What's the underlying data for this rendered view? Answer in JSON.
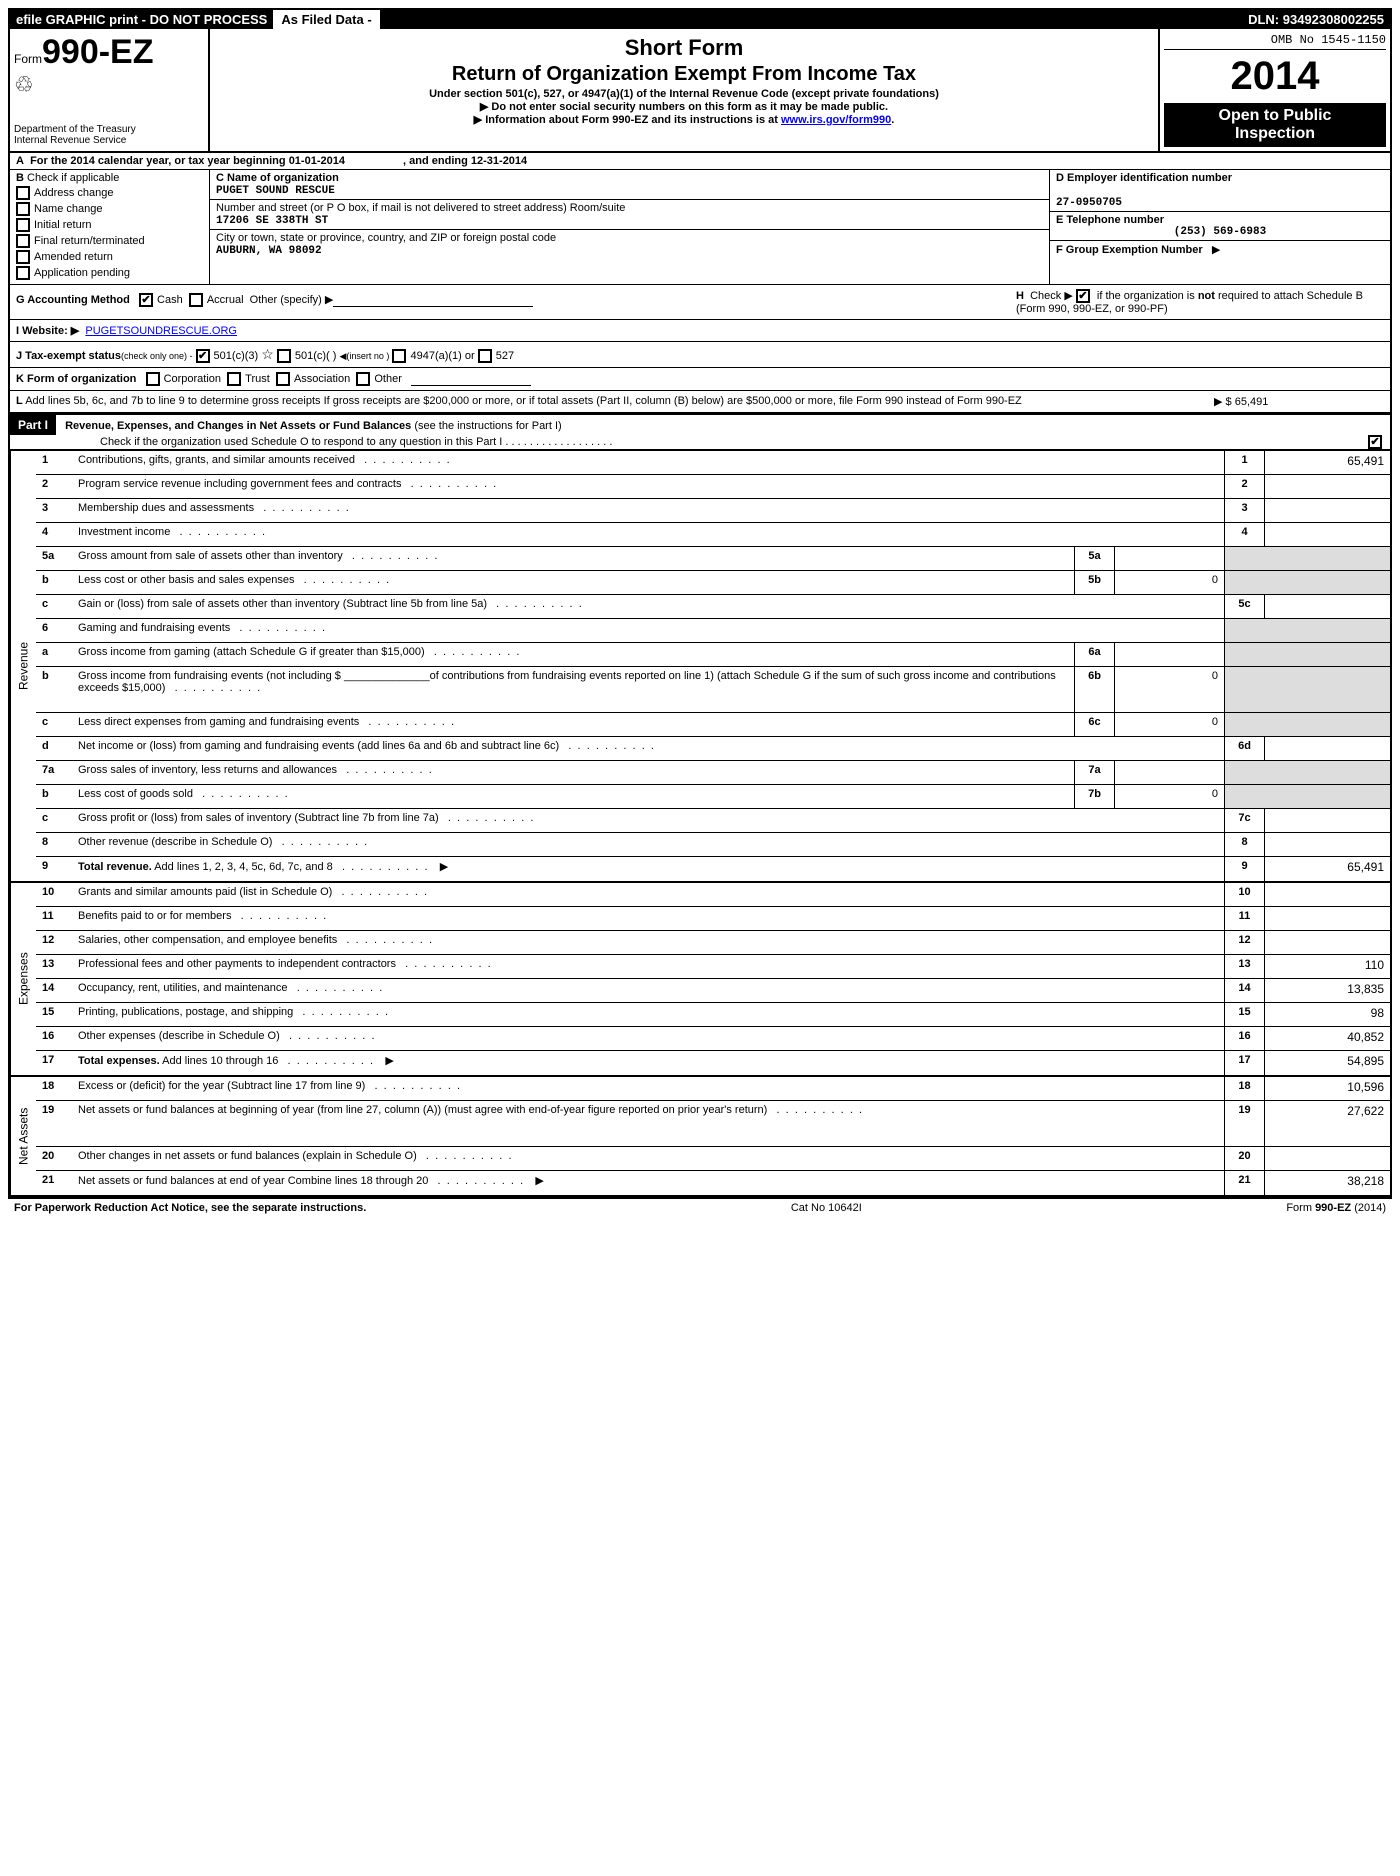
{
  "topbar": {
    "efile": "efile GRAPHIC print - DO NOT PROCESS",
    "asfiled": "As Filed Data -",
    "dln_label": "DLN:",
    "dln": "93492308002255"
  },
  "header": {
    "form_prefix": "Form",
    "form_no": "990-EZ",
    "short_form": "Short Form",
    "title": "Return of Organization Exempt From Income Tax",
    "subtitle": "Under section 501(c), 527, or 4947(a)(1) of the Internal Revenue Code (except private foundations)",
    "note1": "▶ Do not enter social security numbers on this form as it may be made public.",
    "note2_pre": "▶ Information about Form 990-EZ and its instructions is at ",
    "note2_link": "www.irs.gov/form990",
    "note2_post": ".",
    "dept1": "Department of the Treasury",
    "dept2": "Internal Revenue Service",
    "omb": "OMB No 1545-1150",
    "year": "2014",
    "open1": "Open to Public",
    "open2": "Inspection"
  },
  "row_a": {
    "prefix": "A",
    "text1": "For the 2014 calendar year, or tax year beginning ",
    "begin": "01-01-2014",
    "text2": ", and ending ",
    "end": "12-31-2014"
  },
  "col_b": {
    "label": "B",
    "heading": "Check if applicable",
    "items": [
      "Address change",
      "Name change",
      "Initial return",
      "Final return/terminated",
      "Amended return",
      "Application pending"
    ]
  },
  "col_c": {
    "name_label": "C Name of organization",
    "name": "PUGET SOUND RESCUE",
    "street_label": "Number and street (or P O box, if mail is not delivered to street address) Room/suite",
    "street": "17206 SE 338TH ST",
    "city_label": "City or town, state or province, country, and ZIP or foreign postal code",
    "city": "AUBURN, WA  98092"
  },
  "col_d": {
    "label": "D Employer identification number",
    "value": "27-0950705",
    "e_label": "E Telephone number",
    "e_value": "(253) 569-6983",
    "f_label": "F Group Exemption Number",
    "f_arrow": "▶"
  },
  "row_g": {
    "label": "G Accounting Method",
    "cash": "Cash",
    "accrual": "Accrual",
    "other": "Other (specify) ▶"
  },
  "row_h": {
    "prefix": "H",
    "text1": "Check ▶",
    "text2": "if the organization is",
    "not": "not",
    "text3": "required to attach Schedule B (Form 990, 990-EZ, or 990-PF)"
  },
  "row_i": {
    "label": "I Website: ▶",
    "url": "PUGETSOUNDRESCUE.ORG"
  },
  "row_j": {
    "label": "J Tax-exempt status",
    "note": "(check only one) -",
    "opt1": "501(c)(3)",
    "opt2": "501(c)(  )",
    "opt2_note": "◀(insert no )",
    "opt3": "4947(a)(1) or",
    "opt4": "527"
  },
  "row_k": {
    "label": "K Form of organization",
    "opts": [
      "Corporation",
      "Trust",
      "Association",
      "Other"
    ]
  },
  "row_l": {
    "label": "L",
    "text": "Add lines 5b, 6c, and 7b to line 9 to determine gross receipts  If gross receipts are $200,000 or more, or if total assets (Part II, column (B) below) are $500,000 or more, file Form 990 instead of Form 990-EZ",
    "arrow": "▶",
    "value": "$ 65,491"
  },
  "part1": {
    "label": "Part I",
    "title": "Revenue, Expenses, and Changes in Net Assets or Fund Balances",
    "note": "(see the instructions for Part I)",
    "check_line": "Check if the organization used Schedule O to respond to any question in this Part I   .   .   .   .   .   .   .   .   .   .   .   .   .   .   .   .   .   ."
  },
  "sections": {
    "revenue": "Revenue",
    "expenses": "Expenses",
    "netassets": "Net Assets"
  },
  "lines": [
    {
      "n": "1",
      "desc": "Contributions, gifts, grants, and similar amounts received",
      "rbox": "1",
      "rval": "65,491",
      "shade_mid": true
    },
    {
      "n": "2",
      "desc": "Program service revenue including government fees and contracts",
      "rbox": "2",
      "rval": "",
      "shade_mid": true
    },
    {
      "n": "3",
      "desc": "Membership dues and assessments",
      "rbox": "3",
      "rval": "",
      "shade_mid": true
    },
    {
      "n": "4",
      "desc": "Investment income",
      "rbox": "4",
      "rval": "",
      "shade_mid": true
    },
    {
      "n": "5a",
      "desc": "Gross amount from sale of assets other than inventory",
      "mbox": "5a",
      "mval": "",
      "shade_right": true
    },
    {
      "n": "b",
      "desc": "Less  cost or other basis and sales expenses",
      "mbox": "5b",
      "mval": "0",
      "shade_right": true
    },
    {
      "n": "c",
      "desc": "Gain or (loss) from sale of assets other than inventory (Subtract line 5b from line 5a)",
      "rbox": "5c",
      "rval": "",
      "shade_mid": true
    },
    {
      "n": "6",
      "desc": "Gaming and fundraising events",
      "shade_mid": true,
      "shade_right": true,
      "noborder": false
    },
    {
      "n": "a",
      "desc": "Gross income from gaming (attach Schedule G if greater than $15,000)",
      "mbox": "6a",
      "mval": "",
      "shade_right": true
    },
    {
      "n": "b",
      "desc_html": "Gross income from fundraising events (not including $ ______________of contributions from fundraising events reported on line 1) (attach Schedule G if the sum of such gross income and contributions exceeds $15,000)",
      "mbox": "6b",
      "mval": "0",
      "shade_right": true,
      "tall": true
    },
    {
      "n": "c",
      "desc": "Less  direct expenses from gaming and fundraising events",
      "mbox": "6c",
      "mval": "0",
      "shade_right": true
    },
    {
      "n": "d",
      "desc": "Net income or (loss) from gaming and fundraising events (add lines 6a and 6b and subtract line 6c)",
      "rbox": "6d",
      "rval": "",
      "shade_mid": true
    },
    {
      "n": "7a",
      "desc": "Gross sales of inventory, less returns and allowances",
      "mbox": "7a",
      "mval": "",
      "shade_right": true
    },
    {
      "n": "b",
      "desc": "Less  cost of goods sold",
      "mbox": "7b",
      "mval": "0",
      "shade_right": true
    },
    {
      "n": "c",
      "desc": "Gross profit or (loss) from sales of inventory (Subtract line 7b from line 7a)",
      "rbox": "7c",
      "rval": "",
      "shade_mid": true
    },
    {
      "n": "8",
      "desc": "Other revenue (describe in Schedule O)",
      "rbox": "8",
      "rval": "",
      "shade_mid": true
    },
    {
      "n": "9",
      "desc_bold": "Total revenue.",
      "desc_rest": " Add lines 1, 2, 3, 4, 5c, 6d, 7c, and 8",
      "arrow": true,
      "rbox": "9",
      "rval": "65,491",
      "shade_mid": true
    }
  ],
  "exp_lines": [
    {
      "n": "10",
      "desc": "Grants and similar amounts paid (list in Schedule O)",
      "rbox": "10",
      "rval": ""
    },
    {
      "n": "11",
      "desc": "Benefits paid to or for members",
      "rbox": "11",
      "rval": ""
    },
    {
      "n": "12",
      "desc": "Salaries, other compensation, and employee benefits",
      "rbox": "12",
      "rval": ""
    },
    {
      "n": "13",
      "desc": "Professional fees and other payments to independent contractors",
      "rbox": "13",
      "rval": "110"
    },
    {
      "n": "14",
      "desc": "Occupancy, rent, utilities, and maintenance",
      "rbox": "14",
      "rval": "13,835"
    },
    {
      "n": "15",
      "desc": "Printing, publications, postage, and shipping",
      "rbox": "15",
      "rval": "98"
    },
    {
      "n": "16",
      "desc": "Other expenses (describe in Schedule O)",
      "rbox": "16",
      "rval": "40,852"
    },
    {
      "n": "17",
      "desc_bold": "Total expenses.",
      "desc_rest": " Add lines 10 through 16",
      "arrow": true,
      "rbox": "17",
      "rval": "54,895"
    }
  ],
  "na_lines": [
    {
      "n": "18",
      "desc": "Excess or (deficit) for the year (Subtract line 17 from line 9)",
      "rbox": "18",
      "rval": "10,596"
    },
    {
      "n": "19",
      "desc": "Net assets or fund balances at beginning of year (from line 27, column (A)) (must agree with end-of-year figure reported on prior year's return)",
      "rbox": "19",
      "rval": "27,622",
      "tall": true
    },
    {
      "n": "20",
      "desc": "Other changes in net assets or fund balances (explain in Schedule O)",
      "rbox": "20",
      "rval": ""
    },
    {
      "n": "21",
      "desc": "Net assets or fund balances at end of year  Combine lines 18 through 20",
      "arrow": true,
      "rbox": "21",
      "rval": "38,218"
    }
  ],
  "footer": {
    "left": "For Paperwork Reduction Act Notice, see the separate instructions.",
    "middle": "Cat No 10642I",
    "right_pre": "Form ",
    "right_bold": "990-EZ",
    "right_post": " (2014)"
  }
}
